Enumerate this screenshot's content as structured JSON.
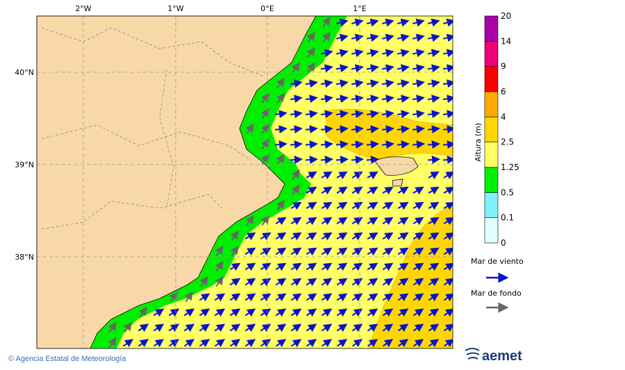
{
  "map": {
    "lon_labels": [
      "2°W",
      "1°W",
      "0°E",
      "1°E"
    ],
    "lat_labels": [
      "40°N",
      "39°N",
      "38°N"
    ]
  },
  "legend": {
    "title": "Altura (m)",
    "levels": [
      "0",
      "0.1",
      "0.5",
      "1.25",
      "2.5",
      "4",
      "6",
      "9",
      "14",
      "20"
    ],
    "colors": [
      "#e0ffff",
      "#80f0ff",
      "#00ee00",
      "#ffff66",
      "#ffd700",
      "#ffaa00",
      "#ff0000",
      "#ee0077",
      "#aa00aa"
    ],
    "wind_sea": "Mar de viento",
    "swell": "Mar de fondo"
  },
  "footer": {
    "credit": "© Agencia Estatal de Meteorología",
    "logo": "aemet"
  }
}
